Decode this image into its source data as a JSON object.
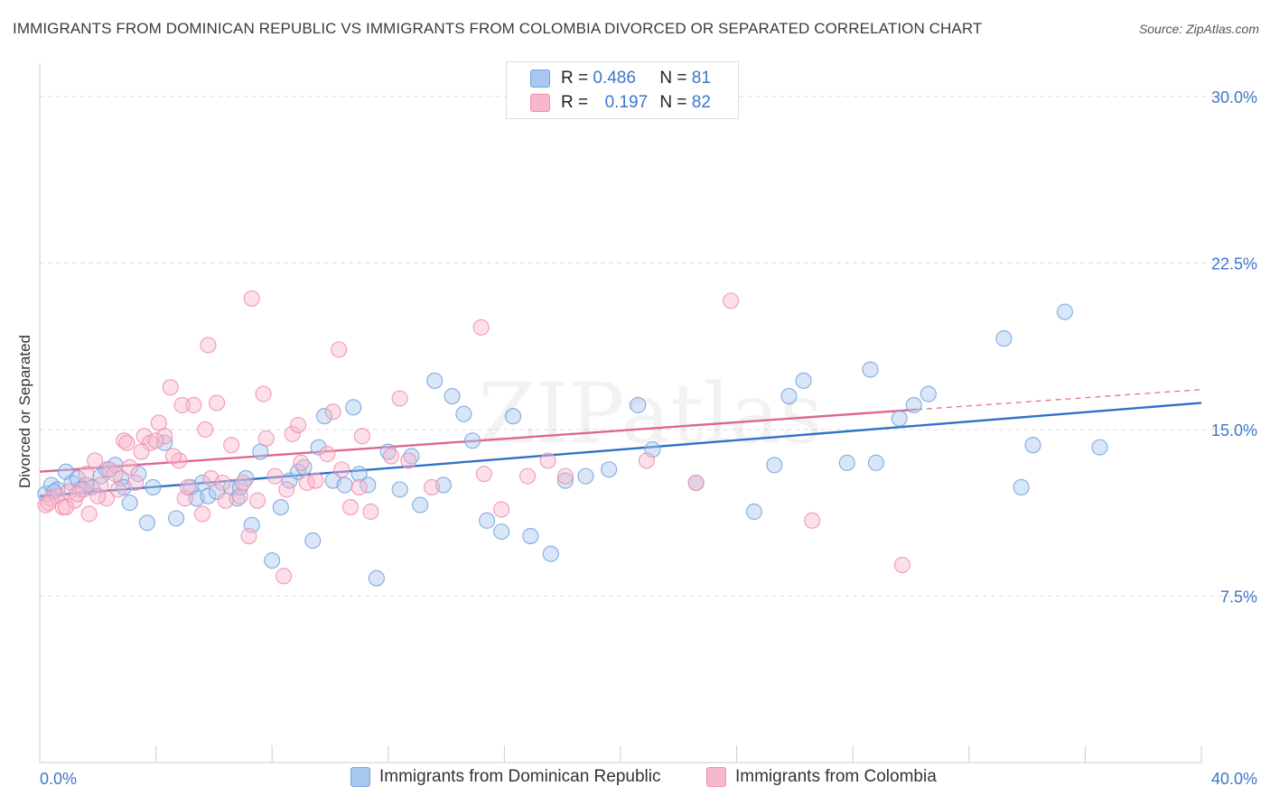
{
  "title": "IMMIGRANTS FROM DOMINICAN REPUBLIC VS IMMIGRANTS FROM COLOMBIA DIVORCED OR SEPARATED CORRELATION CHART",
  "source": "Source: ZipAtlas.com",
  "watermark": "ZIPatlas",
  "legend": {
    "r_label": "R =",
    "n_label": "N =",
    "rows": [
      {
        "r": "0.486",
        "n": "81",
        "color": "#a8c8f0"
      },
      {
        "r": "0.197",
        "n": "82",
        "color": "#f8b8cc"
      }
    ]
  },
  "chart_data": {
    "type": "scatter",
    "xlabel": "",
    "ylabel": "Divorced or Separated",
    "xlim": [
      0,
      40
    ],
    "ylim": [
      0,
      31.5
    ],
    "x_tick_labels": [
      "0.0%",
      "40.0%"
    ],
    "y_ticks": [
      7.5,
      15.0,
      22.5,
      30.0
    ],
    "y_tick_labels": [
      "7.5%",
      "15.0%",
      "22.5%",
      "30.0%"
    ],
    "grid": "horizontal dashed",
    "series": [
      {
        "name": "Immigrants from Dominican Republic",
        "color": "#6fa0dc",
        "fill": "#a8c8f0",
        "line_color": "#2f72c8",
        "trend": {
          "x": [
            0,
            40
          ],
          "y": [
            12.0,
            16.2
          ]
        },
        "points": [
          [
            0.2,
            12.1
          ],
          [
            0.4,
            12.5
          ],
          [
            0.6,
            12.3
          ],
          [
            0.9,
            13.1
          ],
          [
            1.1,
            12.6
          ],
          [
            1.3,
            12.8
          ],
          [
            1.6,
            12.5
          ],
          [
            1.8,
            12.4
          ],
          [
            2.1,
            12.9
          ],
          [
            2.3,
            13.2
          ],
          [
            2.6,
            13.4
          ],
          [
            2.8,
            12.8
          ],
          [
            3.1,
            11.7
          ],
          [
            3.4,
            13.0
          ],
          [
            3.7,
            10.8
          ],
          [
            3.9,
            12.4
          ],
          [
            4.7,
            11.0
          ],
          [
            5.2,
            12.4
          ],
          [
            5.4,
            11.9
          ],
          [
            5.6,
            12.6
          ],
          [
            5.8,
            12.0
          ],
          [
            6.1,
            12.2
          ],
          [
            6.6,
            12.4
          ],
          [
            6.8,
            11.9
          ],
          [
            7.1,
            12.8
          ],
          [
            7.6,
            14.0
          ],
          [
            8.0,
            9.1
          ],
          [
            8.3,
            11.5
          ],
          [
            8.6,
            12.7
          ],
          [
            8.9,
            13.1
          ],
          [
            9.1,
            13.3
          ],
          [
            9.4,
            10.0
          ],
          [
            9.8,
            15.6
          ],
          [
            10.1,
            12.7
          ],
          [
            10.5,
            12.5
          ],
          [
            10.8,
            16.0
          ],
          [
            11.0,
            13.0
          ],
          [
            11.3,
            12.5
          ],
          [
            11.6,
            8.3
          ],
          [
            12.0,
            14.0
          ],
          [
            12.4,
            12.3
          ],
          [
            12.8,
            13.8
          ],
          [
            13.1,
            11.6
          ],
          [
            13.6,
            17.2
          ],
          [
            13.9,
            12.5
          ],
          [
            14.2,
            16.5
          ],
          [
            14.6,
            15.7
          ],
          [
            14.9,
            14.5
          ],
          [
            15.4,
            10.9
          ],
          [
            15.9,
            10.4
          ],
          [
            16.3,
            15.6
          ],
          [
            16.9,
            10.2
          ],
          [
            17.6,
            9.4
          ],
          [
            18.1,
            12.7
          ],
          [
            18.8,
            12.9
          ],
          [
            19.6,
            13.2
          ],
          [
            20.6,
            16.1
          ],
          [
            21.1,
            14.1
          ],
          [
            22.6,
            12.6
          ],
          [
            24.6,
            11.3
          ],
          [
            25.3,
            13.4
          ],
          [
            25.8,
            16.5
          ],
          [
            26.3,
            17.2
          ],
          [
            27.8,
            13.5
          ],
          [
            28.6,
            17.7
          ],
          [
            28.8,
            13.5
          ],
          [
            29.6,
            15.5
          ],
          [
            30.1,
            16.1
          ],
          [
            30.6,
            16.6
          ],
          [
            33.2,
            19.1
          ],
          [
            33.8,
            12.4
          ],
          [
            34.2,
            14.3
          ],
          [
            35.3,
            20.3
          ],
          [
            36.5,
            14.2
          ],
          [
            9.6,
            14.2
          ],
          [
            6.9,
            12.4
          ],
          [
            4.3,
            14.4
          ],
          [
            2.9,
            12.4
          ],
          [
            1.4,
            12.3
          ],
          [
            7.3,
            10.7
          ],
          [
            0.5,
            12.2
          ]
        ]
      },
      {
        "name": "Immigrants from Colombia",
        "color": "#f08cac",
        "fill": "#f8b8cc",
        "line_color": "#e0668f",
        "trend": {
          "x": [
            0,
            30.2
          ],
          "y": [
            13.1,
            15.9
          ],
          "dashed_extension": {
            "x": [
              30.2,
              40
            ],
            "y": [
              15.9,
              16.8
            ]
          }
        },
        "points": [
          [
            0.2,
            11.6
          ],
          [
            0.4,
            11.9
          ],
          [
            0.6,
            12.0
          ],
          [
            0.8,
            11.5
          ],
          [
            1.0,
            12.2
          ],
          [
            1.2,
            11.8
          ],
          [
            1.5,
            12.3
          ],
          [
            1.7,
            11.2
          ],
          [
            1.9,
            13.6
          ],
          [
            2.1,
            12.5
          ],
          [
            2.3,
            11.9
          ],
          [
            2.6,
            13.0
          ],
          [
            2.9,
            14.5
          ],
          [
            3.1,
            13.3
          ],
          [
            3.3,
            12.6
          ],
          [
            3.6,
            14.7
          ],
          [
            3.8,
            14.4
          ],
          [
            4.1,
            15.3
          ],
          [
            4.3,
            14.7
          ],
          [
            4.5,
            16.9
          ],
          [
            4.8,
            13.6
          ],
          [
            5.0,
            11.9
          ],
          [
            5.3,
            16.1
          ],
          [
            5.6,
            11.2
          ],
          [
            5.9,
            12.8
          ],
          [
            6.3,
            12.6
          ],
          [
            6.6,
            14.3
          ],
          [
            6.9,
            12.0
          ],
          [
            7.2,
            10.2
          ],
          [
            7.5,
            11.8
          ],
          [
            7.8,
            14.6
          ],
          [
            8.1,
            12.9
          ],
          [
            8.4,
            8.4
          ],
          [
            8.7,
            14.8
          ],
          [
            8.9,
            15.2
          ],
          [
            9.2,
            12.6
          ],
          [
            9.5,
            12.7
          ],
          [
            9.9,
            13.9
          ],
          [
            10.1,
            15.8
          ],
          [
            10.4,
            13.2
          ],
          [
            10.7,
            11.5
          ],
          [
            11.0,
            12.4
          ],
          [
            11.4,
            11.3
          ],
          [
            12.1,
            13.8
          ],
          [
            12.4,
            16.4
          ],
          [
            12.7,
            13.6
          ],
          [
            13.5,
            12.4
          ],
          [
            15.3,
            13.0
          ],
          [
            15.9,
            11.4
          ],
          [
            16.8,
            12.9
          ],
          [
            17.5,
            13.6
          ],
          [
            18.1,
            12.9
          ],
          [
            20.9,
            13.6
          ],
          [
            22.6,
            12.6
          ],
          [
            23.8,
            20.8
          ],
          [
            26.6,
            10.9
          ],
          [
            29.7,
            8.9
          ],
          [
            7.3,
            20.9
          ],
          [
            5.8,
            18.8
          ],
          [
            10.3,
            18.6
          ],
          [
            15.2,
            19.6
          ],
          [
            4.9,
            16.1
          ],
          [
            7.7,
            16.6
          ],
          [
            3.5,
            14.0
          ],
          [
            2.4,
            13.2
          ],
          [
            1.3,
            12.1
          ],
          [
            0.3,
            11.7
          ],
          [
            6.1,
            16.2
          ],
          [
            9.0,
            13.5
          ],
          [
            11.1,
            14.7
          ],
          [
            5.7,
            15.0
          ],
          [
            4.0,
            14.5
          ],
          [
            2.7,
            12.3
          ],
          [
            0.9,
            11.5
          ],
          [
            8.5,
            12.3
          ],
          [
            7.0,
            12.6
          ],
          [
            6.4,
            11.8
          ],
          [
            3.0,
            14.4
          ],
          [
            4.6,
            13.8
          ],
          [
            1.6,
            13.0
          ],
          [
            2.0,
            12.0
          ],
          [
            5.1,
            12.4
          ]
        ]
      }
    ]
  }
}
